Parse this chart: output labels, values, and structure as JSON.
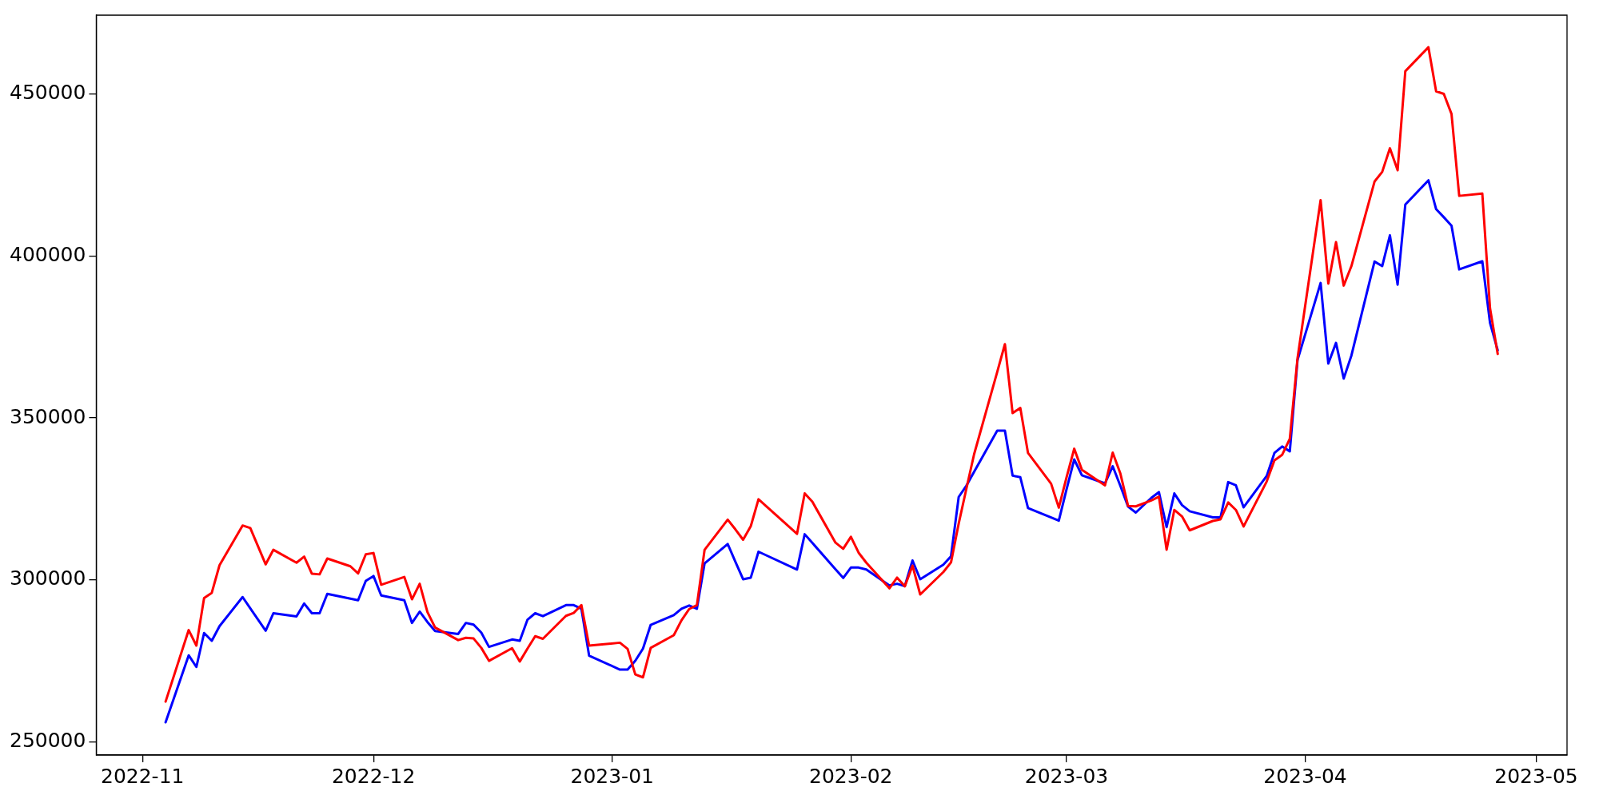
{
  "chart_data": {
    "type": "line",
    "x": [
      "2022-11-04",
      "2022-11-07",
      "2022-11-08",
      "2022-11-09",
      "2022-11-10",
      "2022-11-11",
      "2022-11-14",
      "2022-11-15",
      "2022-11-17",
      "2022-11-18",
      "2022-11-21",
      "2022-11-22",
      "2022-11-23",
      "2022-11-24",
      "2022-11-25",
      "2022-11-28",
      "2022-11-29",
      "2022-11-30",
      "2022-12-01",
      "2022-12-02",
      "2022-12-05",
      "2022-12-06",
      "2022-12-07",
      "2022-12-08",
      "2022-12-09",
      "2022-12-12",
      "2022-12-13",
      "2022-12-14",
      "2022-12-15",
      "2022-12-16",
      "2022-12-19",
      "2022-12-20",
      "2022-12-21",
      "2022-12-22",
      "2022-12-23",
      "2022-12-26",
      "2022-12-27",
      "2022-12-28",
      "2022-12-29",
      "2023-01-02",
      "2023-01-03",
      "2023-01-04",
      "2023-01-05",
      "2023-01-06",
      "2023-01-09",
      "2023-01-10",
      "2023-01-11",
      "2023-01-12",
      "2023-01-13",
      "2023-01-16",
      "2023-01-17",
      "2023-01-18",
      "2023-01-19",
      "2023-01-20",
      "2023-01-25",
      "2023-01-26",
      "2023-01-27",
      "2023-01-30",
      "2023-01-31",
      "2023-02-01",
      "2023-02-02",
      "2023-02-03",
      "2023-02-06",
      "2023-02-07",
      "2023-02-08",
      "2023-02-09",
      "2023-02-10",
      "2023-02-13",
      "2023-02-14",
      "2023-02-15",
      "2023-02-16",
      "2023-02-17",
      "2023-02-20",
      "2023-02-21",
      "2023-02-22",
      "2023-02-23",
      "2023-02-24",
      "2023-02-27",
      "2023-02-28",
      "2023-03-01",
      "2023-03-02",
      "2023-03-03",
      "2023-03-06",
      "2023-03-07",
      "2023-03-08",
      "2023-03-09",
      "2023-03-10",
      "2023-03-12",
      "2023-03-13",
      "2023-03-14",
      "2023-03-15",
      "2023-03-16",
      "2023-03-17",
      "2023-03-20",
      "2023-03-21",
      "2023-03-22",
      "2023-03-23",
      "2023-03-24",
      "2023-03-27",
      "2023-03-28",
      "2023-03-29",
      "2023-03-30",
      "2023-03-31",
      "2023-04-03",
      "2023-04-04",
      "2023-04-05",
      "2023-04-06",
      "2023-04-07",
      "2023-04-10",
      "2023-04-11",
      "2023-04-12",
      "2023-04-13",
      "2023-04-14",
      "2023-04-17",
      "2023-04-18",
      "2023-04-19",
      "2023-04-20",
      "2023-04-21",
      "2023-04-24",
      "2023-04-25",
      "2023-04-26"
    ],
    "series": [
      {
        "color": "#ff0000",
        "values": [
          262400,
          284500,
          279700,
          294400,
          296000,
          304500,
          316800,
          316000,
          304800,
          309300,
          305300,
          307200,
          301900,
          301700,
          306600,
          304200,
          302000,
          307900,
          308300,
          298500,
          300900,
          294000,
          298800,
          290100,
          285300,
          281400,
          282100,
          281900,
          279000,
          275000,
          278900,
          274800,
          278800,
          282600,
          281800,
          288900,
          289800,
          292200,
          279700,
          280600,
          278700,
          270800,
          269900,
          279000,
          282900,
          287500,
          291000,
          292200,
          309300,
          318600,
          315600,
          312400,
          316600,
          324900,
          314200,
          326700,
          324100,
          311500,
          309600,
          313300,
          308400,
          305300,
          297400,
          300700,
          298000,
          304400,
          295500,
          302400,
          305400,
          317400,
          328200,
          338800,
          364200,
          372800,
          351500,
          353100,
          339200,
          329700,
          322300,
          331600,
          340500,
          334000,
          329200,
          339300,
          332800,
          322800,
          322700,
          324500,
          325700,
          309300,
          321600,
          319600,
          315300,
          318200,
          318700,
          323900,
          321600,
          316500,
          330400,
          336900,
          338600,
          343600,
          368400,
          417300,
          391500,
          404300,
          390900,
          396900,
          423000,
          426000,
          433300,
          426500,
          457100,
          464500,
          450900,
          450100,
          443900,
          418600,
          419300,
          383900,
          369800
        ]
      },
      {
        "color": "#0000ff",
        "values": [
          256000,
          276700,
          273100,
          283600,
          281200,
          285700,
          294700,
          291200,
          284300,
          289700,
          288700,
          292700,
          289700,
          289700,
          295700,
          294200,
          293700,
          299700,
          301200,
          295200,
          293700,
          286700,
          290200,
          287000,
          284200,
          283300,
          286700,
          286200,
          283700,
          279300,
          281600,
          281200,
          287700,
          289700,
          288800,
          292200,
          292200,
          291100,
          276600,
          272300,
          272300,
          275000,
          278800,
          286100,
          289100,
          291100,
          292100,
          291100,
          305100,
          311100,
          305600,
          300200,
          300700,
          308700,
          303200,
          314100,
          311400,
          303300,
          300600,
          303800,
          303800,
          303200,
          298300,
          298800,
          298100,
          306000,
          300200,
          304700,
          307300,
          325600,
          329100,
          333400,
          346100,
          346100,
          332200,
          331700,
          322200,
          319300,
          318300,
          327900,
          337200,
          332300,
          329800,
          335100,
          329000,
          322600,
          320800,
          325300,
          327100,
          316300,
          326700,
          323100,
          321200,
          319300,
          319300,
          330200,
          329200,
          322400,
          332100,
          339200,
          341200,
          339700,
          367900,
          391700,
          366800,
          373200,
          362200,
          369300,
          398300,
          396900,
          406400,
          391200,
          415900,
          423400,
          414500,
          412000,
          409400,
          395900,
          398400,
          379400,
          370900
        ]
      }
    ],
    "xlim": [
      "2022-10-26",
      "2023-05-05"
    ],
    "xticks": [
      "2022-11",
      "2022-12",
      "2023-01",
      "2023-02",
      "2023-03",
      "2023-04",
      "2023-05"
    ],
    "ylim": [
      245900,
      474400
    ],
    "yticks": [
      250000,
      300000,
      350000,
      400000,
      450000
    ],
    "grid": false,
    "legend": false,
    "marker": "none",
    "line_style": "solid"
  }
}
